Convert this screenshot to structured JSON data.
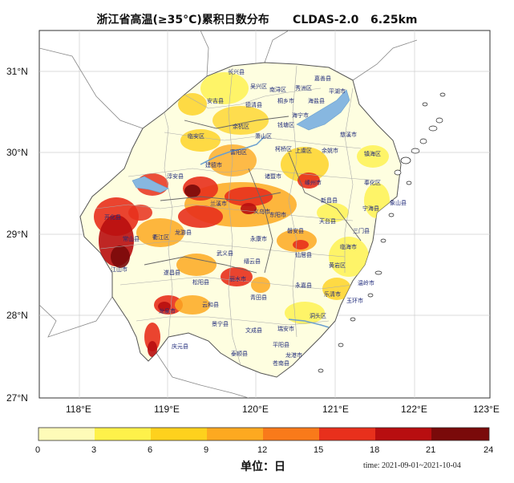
{
  "map": {
    "title": "浙江省高温(≥35°C)累积日数分布",
    "source": "CLDAS-2.0",
    "resolution": "6.25km",
    "lat_labels": [
      "31°N",
      "30°N",
      "29°N",
      "28°N",
      "27°N"
    ],
    "lon_labels": [
      "118°E",
      "119°E",
      "120°E",
      "121°E",
      "122°E",
      "123°E"
    ],
    "counties": [
      "长兴县",
      "吴兴区",
      "南浔区",
      "秀洲区",
      "嘉善县",
      "平湖市",
      "安吉县",
      "德清县",
      "桐乡市",
      "海盐县",
      "海宁市",
      "临安区",
      "余杭区",
      "萧山区",
      "钱塘区",
      "富阳区",
      "柯桥区",
      "上虞区",
      "余姚市",
      "慈溪市",
      "镇海区",
      "淳安县",
      "建德市",
      "诸暨市",
      "嵊州市",
      "新昌县",
      "奉化区",
      "宁海县",
      "象山县",
      "开化县",
      "常山县",
      "衢江区",
      "龙游县",
      "兰溪市",
      "义乌市",
      "东阳市",
      "磐安县",
      "天台县",
      "三门县",
      "江山市",
      "遂昌县",
      "武义县",
      "永康市",
      "缙云县",
      "仙居县",
      "临海市",
      "黄岩区",
      "温岭市",
      "松阳县",
      "丽水市",
      "青田县",
      "永嘉县",
      "乐清市",
      "玉环市",
      "龙泉市",
      "云和县",
      "景宁县",
      "文成县",
      "瑞安市",
      "洞头区",
      "庆元县",
      "泰顺县",
      "苍南县",
      "平阳县",
      "龙港市"
    ]
  },
  "colorbar": {
    "ticks": [
      "0",
      "3",
      "6",
      "9",
      "12",
      "15",
      "18",
      "21",
      "24"
    ],
    "colors": [
      "#fefbb8",
      "#fef14a",
      "#fed11d",
      "#fda920",
      "#f97a1a",
      "#e8301c",
      "#b80e10",
      "#7a0a0a"
    ],
    "unit_label": "单位：日"
  },
  "time_range": "time: 2021-09-01~2021-10-04"
}
